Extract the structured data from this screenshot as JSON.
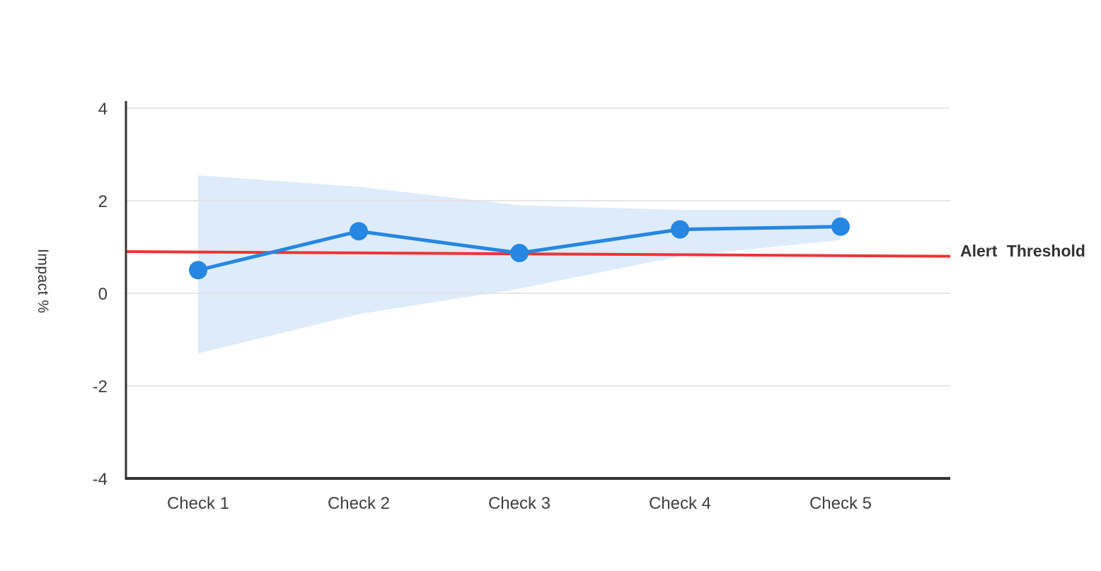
{
  "chart_data": {
    "type": "line",
    "title": "",
    "xlabel": "",
    "ylabel": "Impact %",
    "categories": [
      "Check 1",
      "Check 2",
      "Check 3",
      "Check 4",
      "Check 5"
    ],
    "series": [
      {
        "name": "Impact %",
        "values": [
          0.5,
          1.34,
          0.87,
          1.38,
          1.44
        ]
      }
    ],
    "confidence_band": {
      "upper": [
        2.55,
        2.3,
        1.9,
        1.8,
        1.8
      ],
      "lower": [
        -1.3,
        -0.45,
        0.1,
        0.8,
        1.15
      ]
    },
    "threshold": {
      "label": "Alert Threshold",
      "start_value": 0.9,
      "end_value": 0.8
    },
    "y_ticks": [
      4,
      2,
      0,
      -2,
      -4
    ],
    "ylim": [
      -4,
      4
    ],
    "grid": true,
    "legend": "none",
    "colors": {
      "line": "#2587e1",
      "point": "#2587e1",
      "band": "#ddebfb",
      "threshold": "#ee3434",
      "grid": "#e1e1e1",
      "axis": "#333333",
      "tick_text": "#3f3f3f",
      "label_text": "#333333"
    }
  }
}
